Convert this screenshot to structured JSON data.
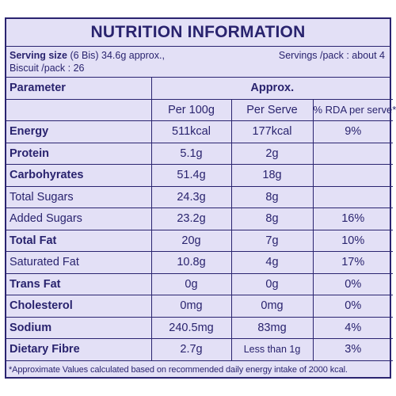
{
  "title": "NUTRITION INFORMATION",
  "serving": {
    "size_label": "Serving size",
    "size_value": "(6 Bis) 34.6g approx.,",
    "biscuit_per_pack": "Biscuit /pack : 26",
    "servings_per_pack": "Servings /pack : about 4"
  },
  "table": {
    "parameter_header": "Parameter",
    "approx_header": "Approx.",
    "col_per100g": "Per 100g",
    "col_perserve": "Per Serve",
    "col_rda": "% RDA per serve*",
    "rows": [
      {
        "name": "Energy",
        "bold": true,
        "per100g": "511kcal",
        "perserve": "177kcal",
        "rda": "9%"
      },
      {
        "name": "Protein",
        "bold": true,
        "per100g": "5.1g",
        "perserve": "2g",
        "rda": ""
      },
      {
        "name": "Carbohyrates",
        "bold": true,
        "per100g": "51.4g",
        "perserve": "18g",
        "rda": ""
      },
      {
        "name": "Total Sugars",
        "bold": false,
        "per100g": "24.3g",
        "perserve": "8g",
        "rda": ""
      },
      {
        "name": "Added Sugars",
        "bold": false,
        "per100g": "23.2g",
        "perserve": "8g",
        "rda": "16%"
      },
      {
        "name": "Total Fat",
        "bold": true,
        "per100g": "20g",
        "perserve": "7g",
        "rda": "10%"
      },
      {
        "name": "Saturated Fat",
        "bold": false,
        "per100g": "10.8g",
        "perserve": "4g",
        "rda": "17%"
      },
      {
        "name": "Trans Fat",
        "bold": true,
        "per100g": "0g",
        "perserve": "0g",
        "rda": "0%"
      },
      {
        "name": "Cholesterol",
        "bold": true,
        "per100g": "0mg",
        "perserve": "0mg",
        "rda": "0%"
      },
      {
        "name": "Sodium",
        "bold": true,
        "per100g": "240.5mg",
        "perserve": "83mg",
        "rda": "4%"
      },
      {
        "name": "Dietary Fibre",
        "bold": true,
        "per100g": "2.7g",
        "perserve": "Less than 1g",
        "rda": "3%"
      }
    ]
  },
  "footnote": "*Approximate Values calculated based on recommended daily energy intake of 2000 kcal.",
  "colors": {
    "ink": "#2a2470",
    "panel": "#e3e0f6"
  }
}
